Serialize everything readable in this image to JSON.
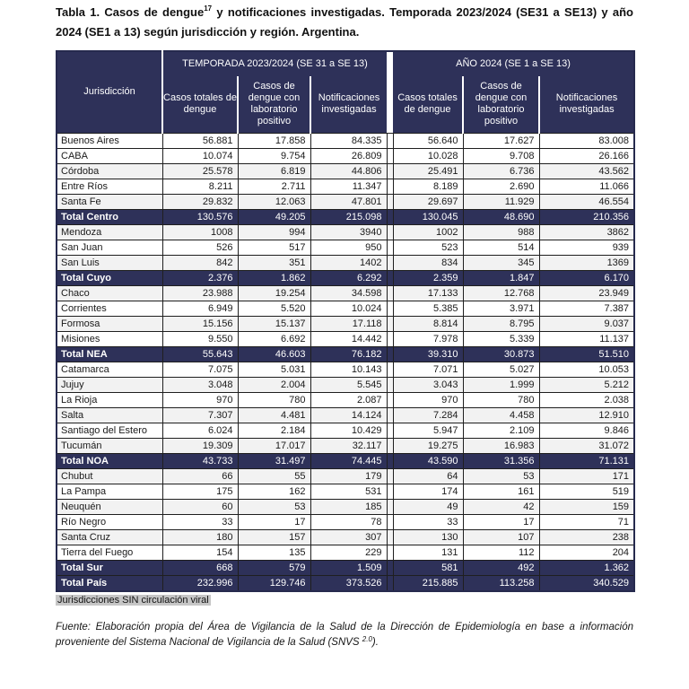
{
  "colors": {
    "header_navy": "#2e3159",
    "row_stripe": "#f2f2f2",
    "footnote_highlight": "#c6c6c6"
  },
  "title": {
    "prefix": "Tabla 1. Casos de dengue",
    "superscript": "17",
    "suffix": " y notificaciones investigadas. Temporada 2023/2024 (SE31 a SE13) y año 2024 (SE1 a 13) según jurisdicción y región. Argentina."
  },
  "table": {
    "jurisdiction_header": "Jurisdicción",
    "groups": [
      {
        "label": "TEMPORADA 2023/2024 (SE 31 a SE 13)",
        "columns": [
          "Casos totales de dengue",
          "Casos de dengue con laboratorio positivo",
          "Notificaciones investigadas"
        ]
      },
      {
        "label": "AÑO 2024 (SE 1 a SE 13)",
        "columns": [
          "Casos totales de dengue",
          "Casos de dengue con laboratorio positivo",
          "Notificaciones investigadas"
        ]
      }
    ],
    "rows": [
      {
        "jurisdiction": "Buenos Aires",
        "type": "data",
        "values": [
          "56.881",
          "17.858",
          "84.335",
          "56.640",
          "17.627",
          "83.008"
        ]
      },
      {
        "jurisdiction": "CABA",
        "type": "data",
        "values": [
          "10.074",
          "9.754",
          "26.809",
          "10.028",
          "9.708",
          "26.166"
        ]
      },
      {
        "jurisdiction": "Córdoba",
        "type": "data",
        "values": [
          "25.578",
          "6.819",
          "44.806",
          "25.491",
          "6.736",
          "43.562"
        ]
      },
      {
        "jurisdiction": "Entre Ríos",
        "type": "data",
        "values": [
          "8.211",
          "2.711",
          "11.347",
          "8.189",
          "2.690",
          "11.066"
        ]
      },
      {
        "jurisdiction": "Santa Fe",
        "type": "data",
        "values": [
          "29.832",
          "12.063",
          "47.801",
          "29.697",
          "11.929",
          "46.554"
        ]
      },
      {
        "jurisdiction": "Total Centro",
        "type": "total",
        "values": [
          "130.576",
          "49.205",
          "215.098",
          "130.045",
          "48.690",
          "210.356"
        ]
      },
      {
        "jurisdiction": "Mendoza",
        "type": "data",
        "values": [
          "1008",
          "994",
          "3940",
          "1002",
          "988",
          "3862"
        ]
      },
      {
        "jurisdiction": "San Juan",
        "type": "data",
        "values": [
          "526",
          "517",
          "950",
          "523",
          "514",
          "939"
        ]
      },
      {
        "jurisdiction": "San Luis",
        "type": "data",
        "values": [
          "842",
          "351",
          "1402",
          "834",
          "345",
          "1369"
        ]
      },
      {
        "jurisdiction": "Total Cuyo",
        "type": "total",
        "values": [
          "2.376",
          "1.862",
          "6.292",
          "2.359",
          "1.847",
          "6.170"
        ]
      },
      {
        "jurisdiction": "Chaco",
        "type": "data",
        "values": [
          "23.988",
          "19.254",
          "34.598",
          "17.133",
          "12.768",
          "23.949"
        ]
      },
      {
        "jurisdiction": "Corrientes",
        "type": "data",
        "values": [
          "6.949",
          "5.520",
          "10.024",
          "5.385",
          "3.971",
          "7.387"
        ]
      },
      {
        "jurisdiction": "Formosa",
        "type": "data",
        "values": [
          "15.156",
          "15.137",
          "17.118",
          "8.814",
          "8.795",
          "9.037"
        ]
      },
      {
        "jurisdiction": "Misiones",
        "type": "data",
        "values": [
          "9.550",
          "6.692",
          "14.442",
          "7.978",
          "5.339",
          "11.137"
        ]
      },
      {
        "jurisdiction": "Total NEA",
        "type": "total",
        "values": [
          "55.643",
          "46.603",
          "76.182",
          "39.310",
          "30.873",
          "51.510"
        ]
      },
      {
        "jurisdiction": "Catamarca",
        "type": "data",
        "values": [
          "7.075",
          "5.031",
          "10.143",
          "7.071",
          "5.027",
          "10.053"
        ]
      },
      {
        "jurisdiction": "Jujuy",
        "type": "data",
        "values": [
          "3.048",
          "2.004",
          "5.545",
          "3.043",
          "1.999",
          "5.212"
        ]
      },
      {
        "jurisdiction": "La Rioja",
        "type": "data",
        "values": [
          "970",
          "780",
          "2.087",
          "970",
          "780",
          "2.038"
        ]
      },
      {
        "jurisdiction": "Salta",
        "type": "data",
        "values": [
          "7.307",
          "4.481",
          "14.124",
          "7.284",
          "4.458",
          "12.910"
        ]
      },
      {
        "jurisdiction": "Santiago del Estero",
        "type": "data",
        "values": [
          "6.024",
          "2.184",
          "10.429",
          "5.947",
          "2.109",
          "9.846"
        ]
      },
      {
        "jurisdiction": "Tucumán",
        "type": "data",
        "values": [
          "19.309",
          "17.017",
          "32.117",
          "19.275",
          "16.983",
          "31.072"
        ]
      },
      {
        "jurisdiction": "Total NOA",
        "type": "total",
        "values": [
          "43.733",
          "31.497",
          "74.445",
          "43.590",
          "31.356",
          "71.131"
        ]
      },
      {
        "jurisdiction": "Chubut",
        "type": "data",
        "values": [
          "66",
          "55",
          "179",
          "64",
          "53",
          "171"
        ]
      },
      {
        "jurisdiction": "La Pampa",
        "type": "data",
        "values": [
          "175",
          "162",
          "531",
          "174",
          "161",
          "519"
        ]
      },
      {
        "jurisdiction": "Neuquén",
        "type": "data",
        "values": [
          "60",
          "53",
          "185",
          "49",
          "42",
          "159"
        ]
      },
      {
        "jurisdiction": "Río Negro",
        "type": "data",
        "values": [
          "33",
          "17",
          "78",
          "33",
          "17",
          "71"
        ]
      },
      {
        "jurisdiction": "Santa Cruz",
        "type": "data",
        "values": [
          "180",
          "157",
          "307",
          "130",
          "107",
          "238"
        ]
      },
      {
        "jurisdiction": "Tierra del Fuego",
        "type": "data",
        "values": [
          "154",
          "135",
          "229",
          "131",
          "112",
          "204"
        ]
      },
      {
        "jurisdiction": "Total Sur",
        "type": "total",
        "values": [
          "668",
          "579",
          "1.509",
          "581",
          "492",
          "1.362"
        ]
      },
      {
        "jurisdiction": "Total País",
        "type": "total",
        "values": [
          "232.996",
          "129.746",
          "373.526",
          "215.885",
          "113.258",
          "340.529"
        ]
      }
    ]
  },
  "footnote": "Jurisdicciones SIN circulación viral",
  "source": {
    "prefix": "Fuente: Elaboración propia del Área de Vigilancia de la Salud de la Dirección de Epidemiología en base a información proveniente del Sistema Nacional de Vigilancia de la Salud (SNVS ",
    "superscript": "2.0",
    "suffix": ")."
  }
}
